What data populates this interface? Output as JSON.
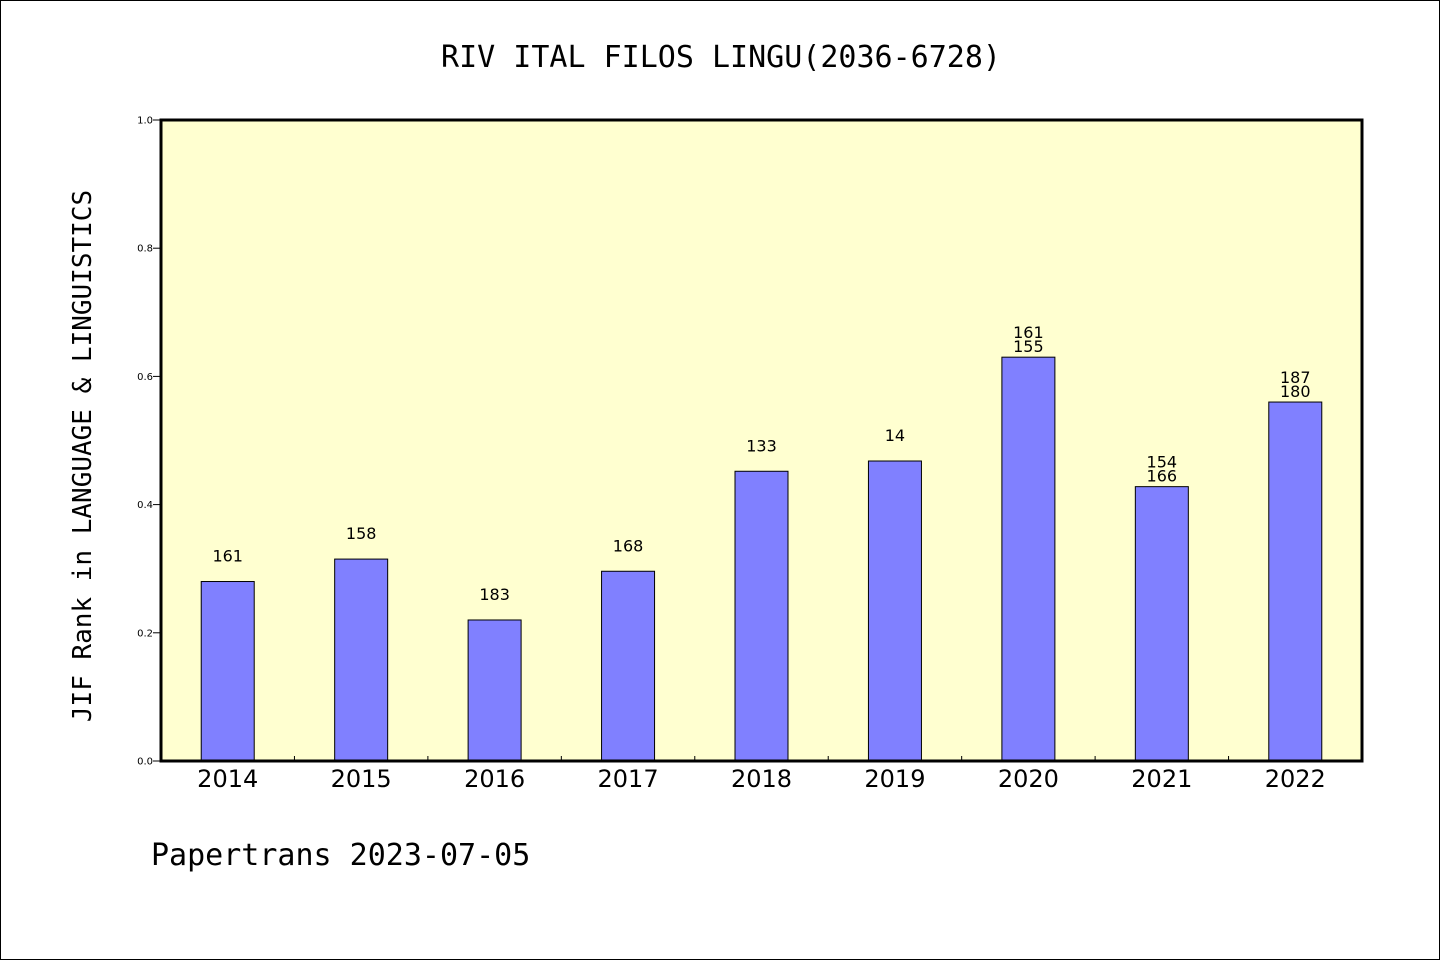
{
  "chart_data": {
    "type": "bar",
    "title": "RIV ITAL FILOS LINGU(2036-6728)",
    "ylabel": "JIF Rank in LANGUAGE & LINGUISTICS",
    "xlabel": "",
    "ylim": [
      0,
      1.0
    ],
    "yticks": [
      "0.0",
      "0.2",
      "0.4",
      "0.6",
      "0.8",
      "1.0"
    ],
    "grid": false,
    "categories": [
      "2014",
      "2015",
      "2016",
      "2017",
      "2018",
      "2019",
      "2020",
      "2021",
      "2022"
    ],
    "values": [
      0.28,
      0.315,
      0.22,
      0.296,
      0.452,
      0.468,
      0.63,
      0.428,
      0.56
    ],
    "bar_labels": [
      [
        "161"
      ],
      [
        "158"
      ],
      [
        "183"
      ],
      [
        "168"
      ],
      [
        "133"
      ],
      [
        "14"
      ],
      [
        "161",
        "155"
      ],
      [
        "154",
        "166"
      ],
      [
        "187",
        "180"
      ]
    ],
    "colors": {
      "bar": "#8080ff",
      "plot_background": "#ffffd0"
    }
  },
  "footer": "Papertrans 2023-07-05"
}
